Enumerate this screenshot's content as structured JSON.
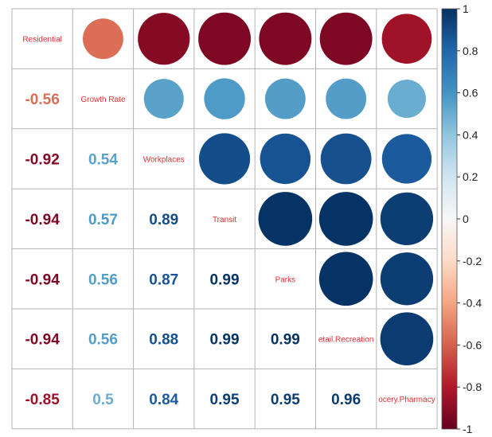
{
  "chart_data": {
    "type": "heatmap",
    "variables": [
      "Residential",
      "Growth Rate",
      "Workplaces",
      "Transit",
      "Parks",
      "etail.Recreation",
      "ocery.Pharmacy"
    ],
    "matrix": [
      [
        1,
        -0.56,
        -0.92,
        -0.94,
        -0.94,
        -0.94,
        -0.85
      ],
      [
        -0.56,
        1,
        0.54,
        0.57,
        0.56,
        0.56,
        0.5
      ],
      [
        -0.92,
        0.54,
        1,
        0.89,
        0.87,
        0.88,
        0.84
      ],
      [
        -0.94,
        0.57,
        0.89,
        1,
        0.99,
        0.99,
        0.95
      ],
      [
        -0.94,
        0.56,
        0.87,
        0.99,
        1,
        0.99,
        0.95
      ],
      [
        -0.94,
        0.56,
        0.88,
        0.99,
        0.99,
        1,
        0.96
      ],
      [
        -0.85,
        0.5,
        0.84,
        0.95,
        0.95,
        0.96,
        1
      ]
    ],
    "upper": "circles",
    "lower": "numbers",
    "diagonal": "variable-names",
    "colorbar": {
      "range": [
        -1,
        1
      ],
      "ticks": [
        1,
        0.8,
        0.6,
        0.4,
        0.2,
        0,
        -0.2,
        -0.4,
        -0.6,
        -0.8,
        -1
      ],
      "tick_labels": [
        "1",
        "0.8",
        "0.6",
        "0.4",
        "0.2",
        "0",
        "-0.2",
        "-0.4",
        "-0.6",
        "-0.8",
        "-1"
      ],
      "placement": "right"
    },
    "colors": {
      "negative_strong": "#67001f",
      "negative_mid": "#d6604d",
      "neutral": "#f7f7f7",
      "positive_mid": "#4393c3",
      "positive_strong": "#053061",
      "diag_label": "#e03030",
      "grid": "#b3b3b3"
    },
    "grid": true
  }
}
